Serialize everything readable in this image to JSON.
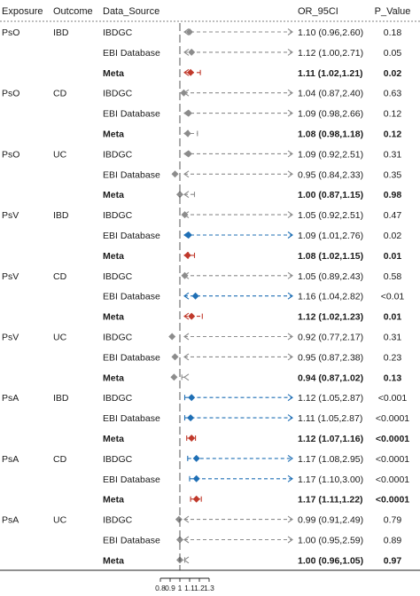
{
  "columns": {
    "exposure": "Exposure",
    "outcome": "Outcome",
    "source": "Data_Source",
    "or_ci": "OR_95CI",
    "p": "P_Value"
  },
  "colors": {
    "gray": "#8c8c8c",
    "blue": "#1f6fb5",
    "red": "#c0392b",
    "rule": "#555555"
  },
  "chart_data": {
    "type": "forest",
    "reference_line": 1,
    "x_axis": {
      "ticks": [
        0.8,
        0.9,
        1,
        1.1,
        1.2,
        1.3
      ],
      "tick_labels": [
        "0.8",
        "0.9",
        "1",
        "1.1",
        "1.2",
        "1.3"
      ],
      "display_range": [
        0.8,
        1.3
      ],
      "clipped_arrows": true
    },
    "rows": [
      {
        "exposure": "PsO",
        "outcome": "IBD",
        "source": "IBDGC",
        "or": 1.1,
        "lo": 0.96,
        "hi": 2.6,
        "or_ci": "1.10 (0.96,2.60)",
        "p": "0.18",
        "meta": false,
        "color": "gray"
      },
      {
        "exposure": "",
        "outcome": "",
        "source": "EBI Database",
        "or": 1.12,
        "lo": 1.0,
        "hi": 2.71,
        "or_ci": "1.12 (1.00,2.71)",
        "p": "0.05",
        "meta": false,
        "color": "gray"
      },
      {
        "exposure": "",
        "outcome": "",
        "source": "Meta",
        "or": 1.11,
        "lo": 1.02,
        "hi": 1.21,
        "or_ci": "1.11 (1.02,1.21)",
        "p": "0.02",
        "meta": true,
        "color": "red"
      },
      {
        "exposure": "PsO",
        "outcome": "CD",
        "source": "IBDGC",
        "or": 1.04,
        "lo": 0.87,
        "hi": 2.4,
        "or_ci": "1.04 (0.87,2.40)",
        "p": "0.63",
        "meta": false,
        "color": "gray"
      },
      {
        "exposure": "",
        "outcome": "",
        "source": "EBI Database",
        "or": 1.09,
        "lo": 0.98,
        "hi": 2.66,
        "or_ci": "1.09 (0.98,2.66)",
        "p": "0.12",
        "meta": false,
        "color": "gray"
      },
      {
        "exposure": "",
        "outcome": "",
        "source": "Meta",
        "or": 1.08,
        "lo": 0.98,
        "hi": 1.18,
        "or_ci": "1.08 (0.98,1.18)",
        "p": "0.12",
        "meta": true,
        "color": "gray"
      },
      {
        "exposure": "PsO",
        "outcome": "UC",
        "source": "IBDGC",
        "or": 1.09,
        "lo": 0.92,
        "hi": 2.51,
        "or_ci": "1.09 (0.92,2.51)",
        "p": "0.31",
        "meta": false,
        "color": "gray"
      },
      {
        "exposure": "",
        "outcome": "",
        "source": "EBI Database",
        "or": 0.95,
        "lo": 0.84,
        "hi": 2.33,
        "or_ci": "0.95 (0.84,2.33)",
        "p": "0.35",
        "meta": false,
        "color": "gray"
      },
      {
        "exposure": "",
        "outcome": "",
        "source": "Meta",
        "or": 1.0,
        "lo": 0.87,
        "hi": 1.15,
        "or_ci": "1.00 (0.87,1.15)",
        "p": "0.98",
        "meta": true,
        "color": "gray"
      },
      {
        "exposure": "PsV",
        "outcome": "IBD",
        "source": "IBDGC",
        "or": 1.05,
        "lo": 0.92,
        "hi": 2.51,
        "or_ci": "1.05 (0.92,2.51)",
        "p": "0.47",
        "meta": false,
        "color": "gray"
      },
      {
        "exposure": "",
        "outcome": "",
        "source": "EBI Database",
        "or": 1.09,
        "lo": 1.01,
        "hi": 2.76,
        "or_ci": "1.09 (1.01,2.76)",
        "p": "0.02",
        "meta": false,
        "color": "blue"
      },
      {
        "exposure": "",
        "outcome": "",
        "source": "Meta",
        "or": 1.08,
        "lo": 1.02,
        "hi": 1.15,
        "or_ci": "1.08 (1.02,1.15)",
        "p": "0.01",
        "meta": true,
        "color": "red"
      },
      {
        "exposure": "PsV",
        "outcome": "CD",
        "source": "IBDGC",
        "or": 1.05,
        "lo": 0.89,
        "hi": 2.43,
        "or_ci": "1.05 (0.89,2.43)",
        "p": "0.58",
        "meta": false,
        "color": "gray"
      },
      {
        "exposure": "",
        "outcome": "",
        "source": "EBI Database",
        "or": 1.16,
        "lo": 1.04,
        "hi": 2.82,
        "or_ci": "1.16 (1.04,2.82)",
        "p": "<0.01",
        "meta": false,
        "color": "blue"
      },
      {
        "exposure": "",
        "outcome": "",
        "source": "Meta",
        "or": 1.12,
        "lo": 1.02,
        "hi": 1.23,
        "or_ci": "1.12 (1.02,1.23)",
        "p": "0.01",
        "meta": true,
        "color": "red"
      },
      {
        "exposure": "PsV",
        "outcome": "UC",
        "source": "IBDGC",
        "or": 0.92,
        "lo": 0.77,
        "hi": 2.17,
        "or_ci": "0.92 (0.77,2.17)",
        "p": "0.31",
        "meta": false,
        "color": "gray"
      },
      {
        "exposure": "",
        "outcome": "",
        "source": "EBI Database",
        "or": 0.95,
        "lo": 0.87,
        "hi": 2.38,
        "or_ci": "0.95 (0.87,2.38)",
        "p": "0.23",
        "meta": false,
        "color": "gray"
      },
      {
        "exposure": "",
        "outcome": "",
        "source": "Meta",
        "or": 0.94,
        "lo": 0.87,
        "hi": 1.02,
        "or_ci": "0.94 (0.87,1.02)",
        "p": "0.13",
        "meta": true,
        "color": "gray"
      },
      {
        "exposure": "PsA",
        "outcome": "IBD",
        "source": "IBDGC",
        "or": 1.12,
        "lo": 1.05,
        "hi": 2.87,
        "or_ci": "1.12 (1.05,2.87)",
        "p": "<0.001",
        "meta": false,
        "color": "blue"
      },
      {
        "exposure": "",
        "outcome": "",
        "source": "EBI Database",
        "or": 1.11,
        "lo": 1.05,
        "hi": 2.87,
        "or_ci": "1.11 (1.05,2.87)",
        "p": "<0.0001",
        "meta": false,
        "color": "blue"
      },
      {
        "exposure": "",
        "outcome": "",
        "source": "Meta",
        "or": 1.12,
        "lo": 1.07,
        "hi": 1.16,
        "or_ci": "1.12 (1.07,1.16)",
        "p": "<0.0001",
        "meta": true,
        "color": "red"
      },
      {
        "exposure": "PsA",
        "outcome": "CD",
        "source": "IBDGC",
        "or": 1.17,
        "lo": 1.08,
        "hi": 2.95,
        "or_ci": "1.17 (1.08,2.95)",
        "p": "<0.0001",
        "meta": false,
        "color": "blue"
      },
      {
        "exposure": "",
        "outcome": "",
        "source": "EBI Database",
        "or": 1.17,
        "lo": 1.1,
        "hi": 3.0,
        "or_ci": "1.17 (1.10,3.00)",
        "p": "<0.0001",
        "meta": false,
        "color": "blue"
      },
      {
        "exposure": "",
        "outcome": "",
        "source": "Meta",
        "or": 1.17,
        "lo": 1.11,
        "hi": 1.22,
        "or_ci": "1.17 (1.11,1.22)",
        "p": "<0.0001",
        "meta": true,
        "color": "red"
      },
      {
        "exposure": "PsA",
        "outcome": "UC",
        "source": "IBDGC",
        "or": 0.99,
        "lo": 0.91,
        "hi": 2.49,
        "or_ci": "0.99 (0.91,2.49)",
        "p": "0.79",
        "meta": false,
        "color": "gray"
      },
      {
        "exposure": "",
        "outcome": "",
        "source": "EBI Database",
        "or": 1.0,
        "lo": 0.95,
        "hi": 2.59,
        "or_ci": "1.00 (0.95,2.59)",
        "p": "0.89",
        "meta": false,
        "color": "gray"
      },
      {
        "exposure": "",
        "outcome": "",
        "source": "Meta",
        "or": 1.0,
        "lo": 0.96,
        "hi": 1.05,
        "or_ci": "1.00 (0.96,1.05)",
        "p": "0.97",
        "meta": true,
        "color": "gray"
      }
    ]
  }
}
